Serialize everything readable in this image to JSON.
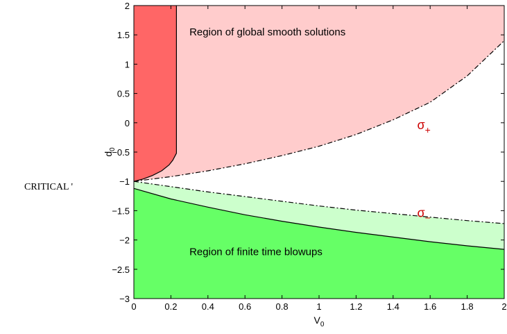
{
  "side_text": "CRITICAL '",
  "chart_data": {
    "type": "area",
    "xlabel": "V",
    "xlabel_sub": "0",
    "ylabel": "d",
    "ylabel_sub": "0",
    "xlim": [
      0,
      2
    ],
    "ylim": [
      -3,
      2
    ],
    "grid": false,
    "x_ticks": [
      0,
      0.2,
      0.4,
      0.6,
      0.8,
      1,
      1.2,
      1.4,
      1.6,
      1.8,
      2
    ],
    "x_tick_labels": [
      "0",
      "0.2",
      "0.4",
      "0.6",
      "0.8",
      "1",
      "1.2",
      "1.4",
      "1.6",
      "1.8",
      "2"
    ],
    "y_ticks": [
      2,
      1.5,
      1,
      0.5,
      0,
      -0.5,
      -1,
      -1.5,
      -2,
      -2.5,
      -3
    ],
    "y_tick_labels": [
      "2",
      "1.5",
      "1",
      "0.5",
      "0",
      "−0.5",
      "−1",
      "−1.5",
      "−2",
      "−2.5",
      "−3"
    ],
    "annotations": [
      {
        "text": "Region of global smooth solutions",
        "x": 0.3,
        "y": 1.55,
        "color": "#000000"
      },
      {
        "text": "Region of finite time blowups",
        "x": 0.3,
        "y": -2.2,
        "color": "#000000"
      },
      {
        "text": "σ",
        "sub": "+",
        "x": 1.53,
        "y": -0.05,
        "color": "#cc0000"
      },
      {
        "text": "σ",
        "sub": "−",
        "x": 1.53,
        "y": -1.55,
        "color": "#cc0000"
      }
    ],
    "colors": {
      "dark_red": "#ff6666",
      "light_red": "#ffcccc",
      "dark_green": "#66ff66",
      "light_green": "#ccffcc"
    },
    "sigma_plus": {
      "name": "σ+",
      "style": "dash-dot",
      "x": [
        0,
        0.2,
        0.4,
        0.6,
        0.8,
        1.0,
        1.2,
        1.4,
        1.6,
        1.8,
        2.0
      ],
      "y": [
        -1.0,
        -0.92,
        -0.82,
        -0.7,
        -0.56,
        -0.4,
        -0.2,
        0.05,
        0.35,
        0.8,
        1.4
      ]
    },
    "sigma_minus": {
      "name": "σ−",
      "style": "dash-dot",
      "x": [
        0,
        0.2,
        0.4,
        0.6,
        0.8,
        1.0,
        1.2,
        1.4,
        1.6,
        1.8,
        2.0
      ],
      "y": [
        -1.0,
        -1.09,
        -1.18,
        -1.26,
        -1.34,
        -1.42,
        -1.49,
        -1.55,
        -1.61,
        -1.67,
        -1.72
      ]
    },
    "blowup_boundary": {
      "style": "solid",
      "x": [
        0,
        0.2,
        0.4,
        0.6,
        0.8,
        1.0,
        1.2,
        1.4,
        1.6,
        1.8,
        2.0
      ],
      "y": [
        -1.12,
        -1.3,
        -1.44,
        -1.57,
        -1.68,
        -1.78,
        -1.87,
        -1.95,
        -2.03,
        -2.1,
        -2.16
      ]
    },
    "vertical_boundary": {
      "style": "solid",
      "x": [
        0,
        0.05,
        0.1,
        0.15,
        0.19,
        0.21,
        0.22,
        0.23,
        0.23
      ],
      "y": [
        -1.0,
        -0.96,
        -0.9,
        -0.82,
        -0.72,
        -0.64,
        -0.58,
        -0.52,
        2.0
      ]
    }
  }
}
